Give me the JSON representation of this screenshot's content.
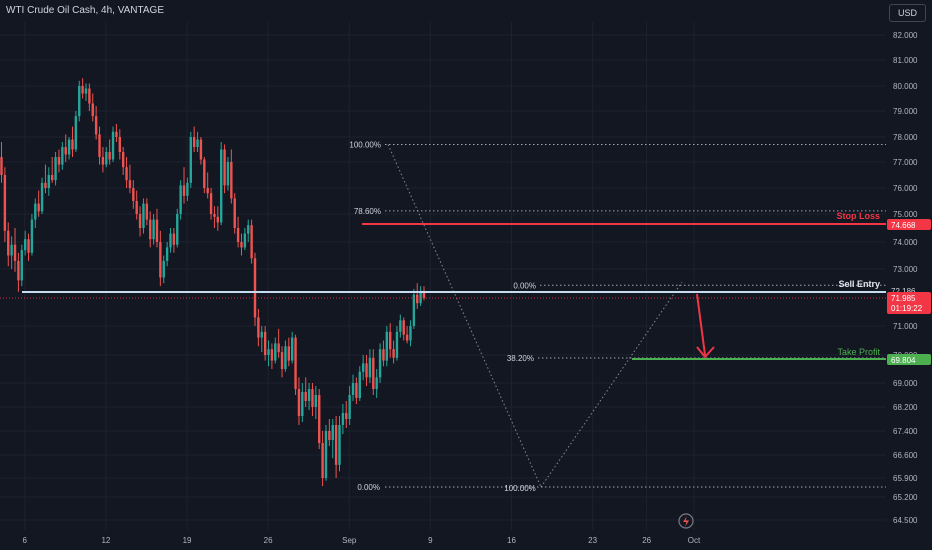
{
  "header": {
    "title": "WTI Crude Oil Cash, 4h, VANTAGE",
    "currency": "USD"
  },
  "colors": {
    "up": "#26a69a",
    "down": "#ef5350",
    "bg": "#131722",
    "grid": "#1e222d",
    "text": "#b2b5be",
    "red": "#f23645",
    "green": "#4caf50",
    "entry": "#c5dbf2"
  },
  "chart_data": {
    "type": "candlestick",
    "yticks": [
      82.0,
      81.0,
      80.0,
      79.0,
      78.0,
      77.0,
      76.0,
      75.0,
      74.0,
      73.0,
      71.0,
      70.0,
      69.0,
      68.2,
      67.4,
      66.6,
      65.9,
      65.2,
      64.5
    ],
    "ytick_labels": [
      "82.000",
      "81.000",
      "80.000",
      "79.000",
      "78.000",
      "77.000",
      "76.000",
      "75.000",
      "74.000",
      "73.000",
      "71.000",
      "70.000",
      "69.000",
      "68.200",
      "67.400",
      "66.600",
      "65.900",
      "65.200",
      "64.500"
    ],
    "xticks": [
      {
        "bar": 6,
        "label": "6"
      },
      {
        "bar": 30,
        "label": "12"
      },
      {
        "bar": 54,
        "label": "19"
      },
      {
        "bar": 78,
        "label": "26"
      },
      {
        "bar": 102,
        "label": "Sep"
      },
      {
        "bar": 126,
        "label": "9"
      },
      {
        "bar": 150,
        "label": "16"
      },
      {
        "bar": 174,
        "label": "23"
      },
      {
        "bar": 190,
        "label": "26"
      },
      {
        "bar": 204,
        "label": "Oct"
      }
    ],
    "price_line": {
      "value": 71.985,
      "label": "71.985",
      "countdown": "01:19:22"
    },
    "stop_loss": {
      "value": 74.668,
      "label": "74.668",
      "text": "Stop Loss"
    },
    "sell_entry": {
      "value": 72.186,
      "label": "72.186",
      "text": "Sell Entry"
    },
    "take_profit": {
      "value": 69.804,
      "label": "69.804",
      "text": "Take Profit"
    },
    "fib_top": {
      "levels": [
        {
          "label": "100.00%",
          "value": 77.7
        },
        {
          "label": "78.60%",
          "value": 75.12
        },
        {
          "label": "0.00%",
          "value": 72.5
        }
      ]
    },
    "fib_bottom": {
      "levels": [
        {
          "label": "38.20%",
          "value": 69.85
        },
        {
          "label": "0.00%",
          "value": 65.6
        },
        {
          "label": "100.00%",
          "value": 65.6
        }
      ]
    },
    "candles": [
      {
        "o": 77.2,
        "h": 77.8,
        "l": 76.2,
        "c": 76.5
      },
      {
        "o": 76.5,
        "h": 76.8,
        "l": 74.0,
        "c": 74.4
      },
      {
        "o": 74.4,
        "h": 74.7,
        "l": 73.1,
        "c": 73.5
      },
      {
        "o": 73.5,
        "h": 74.2,
        "l": 73.0,
        "c": 73.9
      },
      {
        "o": 73.9,
        "h": 74.5,
        "l": 72.9,
        "c": 73.3
      },
      {
        "o": 73.3,
        "h": 73.6,
        "l": 72.2,
        "c": 72.6
      },
      {
        "o": 72.6,
        "h": 73.9,
        "l": 72.4,
        "c": 73.7
      },
      {
        "o": 73.7,
        "h": 74.4,
        "l": 73.5,
        "c": 74.1
      },
      {
        "o": 74.1,
        "h": 74.3,
        "l": 73.3,
        "c": 73.6
      },
      {
        "o": 73.6,
        "h": 75.0,
        "l": 73.5,
        "c": 74.8
      },
      {
        "o": 74.8,
        "h": 75.6,
        "l": 74.5,
        "c": 75.4
      },
      {
        "o": 75.4,
        "h": 75.9,
        "l": 74.9,
        "c": 75.1
      },
      {
        "o": 75.1,
        "h": 76.4,
        "l": 75.0,
        "c": 76.2
      },
      {
        "o": 76.2,
        "h": 76.9,
        "l": 75.8,
        "c": 76.0
      },
      {
        "o": 76.0,
        "h": 76.8,
        "l": 75.7,
        "c": 76.5
      },
      {
        "o": 76.5,
        "h": 77.2,
        "l": 76.2,
        "c": 76.3
      },
      {
        "o": 76.3,
        "h": 77.4,
        "l": 76.1,
        "c": 77.2
      },
      {
        "o": 77.2,
        "h": 77.5,
        "l": 76.6,
        "c": 76.9
      },
      {
        "o": 76.9,
        "h": 77.8,
        "l": 76.7,
        "c": 77.6
      },
      {
        "o": 77.6,
        "h": 78.1,
        "l": 77.0,
        "c": 77.3
      },
      {
        "o": 77.3,
        "h": 78.0,
        "l": 77.1,
        "c": 77.9
      },
      {
        "o": 77.9,
        "h": 78.4,
        "l": 77.2,
        "c": 77.5
      },
      {
        "o": 77.5,
        "h": 79.0,
        "l": 77.4,
        "c": 78.8
      },
      {
        "o": 78.8,
        "h": 80.2,
        "l": 78.6,
        "c": 80.0
      },
      {
        "o": 80.0,
        "h": 80.3,
        "l": 79.5,
        "c": 79.7
      },
      {
        "o": 79.7,
        "h": 80.1,
        "l": 79.4,
        "c": 79.9
      },
      {
        "o": 79.9,
        "h": 80.1,
        "l": 79.0,
        "c": 79.3
      },
      {
        "o": 79.3,
        "h": 79.7,
        "l": 78.6,
        "c": 78.8
      },
      {
        "o": 78.8,
        "h": 79.2,
        "l": 77.9,
        "c": 78.1
      },
      {
        "o": 78.1,
        "h": 78.4,
        "l": 76.9,
        "c": 77.2
      },
      {
        "o": 77.2,
        "h": 77.6,
        "l": 76.6,
        "c": 76.9
      },
      {
        "o": 76.9,
        "h": 77.6,
        "l": 76.8,
        "c": 77.4
      },
      {
        "o": 77.4,
        "h": 77.9,
        "l": 76.9,
        "c": 77.1
      },
      {
        "o": 77.1,
        "h": 78.4,
        "l": 77.0,
        "c": 78.2
      },
      {
        "o": 78.2,
        "h": 78.5,
        "l": 77.8,
        "c": 78.0
      },
      {
        "o": 78.0,
        "h": 78.3,
        "l": 77.1,
        "c": 77.4
      },
      {
        "o": 77.4,
        "h": 77.6,
        "l": 76.5,
        "c": 76.8
      },
      {
        "o": 76.8,
        "h": 77.2,
        "l": 76.0,
        "c": 76.3
      },
      {
        "o": 76.3,
        "h": 76.9,
        "l": 75.8,
        "c": 76.0
      },
      {
        "o": 76.0,
        "h": 76.3,
        "l": 75.2,
        "c": 75.5
      },
      {
        "o": 75.5,
        "h": 75.9,
        "l": 74.8,
        "c": 75.0
      },
      {
        "o": 75.0,
        "h": 75.3,
        "l": 74.2,
        "c": 74.5
      },
      {
        "o": 74.5,
        "h": 75.6,
        "l": 74.3,
        "c": 75.4
      },
      {
        "o": 75.4,
        "h": 75.6,
        "l": 74.6,
        "c": 74.8
      },
      {
        "o": 74.8,
        "h": 75.1,
        "l": 73.8,
        "c": 74.1
      },
      {
        "o": 74.1,
        "h": 75.0,
        "l": 73.9,
        "c": 74.8
      },
      {
        "o": 74.8,
        "h": 75.2,
        "l": 73.8,
        "c": 74.0
      },
      {
        "o": 74.0,
        "h": 74.4,
        "l": 72.4,
        "c": 72.7
      },
      {
        "o": 72.7,
        "h": 73.5,
        "l": 72.5,
        "c": 73.3
      },
      {
        "o": 73.3,
        "h": 74.0,
        "l": 73.1,
        "c": 73.8
      },
      {
        "o": 73.8,
        "h": 74.5,
        "l": 73.6,
        "c": 74.3
      },
      {
        "o": 74.3,
        "h": 74.5,
        "l": 73.6,
        "c": 73.9
      },
      {
        "o": 73.9,
        "h": 75.2,
        "l": 73.8,
        "c": 75.0
      },
      {
        "o": 75.0,
        "h": 76.3,
        "l": 74.8,
        "c": 76.1
      },
      {
        "o": 76.1,
        "h": 76.8,
        "l": 75.4,
        "c": 75.7
      },
      {
        "o": 75.7,
        "h": 76.4,
        "l": 75.5,
        "c": 76.2
      },
      {
        "o": 76.2,
        "h": 78.2,
        "l": 76.0,
        "c": 78.0
      },
      {
        "o": 78.0,
        "h": 78.4,
        "l": 77.4,
        "c": 77.6
      },
      {
        "o": 77.6,
        "h": 78.2,
        "l": 77.4,
        "c": 77.9
      },
      {
        "o": 77.9,
        "h": 78.0,
        "l": 76.9,
        "c": 77.1
      },
      {
        "o": 77.1,
        "h": 77.2,
        "l": 75.8,
        "c": 76.0
      },
      {
        "o": 76.0,
        "h": 76.6,
        "l": 75.6,
        "c": 75.8
      },
      {
        "o": 75.8,
        "h": 76.0,
        "l": 74.8,
        "c": 75.0
      },
      {
        "o": 75.0,
        "h": 75.3,
        "l": 74.5,
        "c": 74.9
      },
      {
        "o": 74.9,
        "h": 75.3,
        "l": 74.4,
        "c": 74.7
      },
      {
        "o": 74.7,
        "h": 77.8,
        "l": 74.6,
        "c": 77.5
      },
      {
        "o": 77.5,
        "h": 77.7,
        "l": 75.8,
        "c": 76.1
      },
      {
        "o": 76.1,
        "h": 77.2,
        "l": 75.9,
        "c": 77.0
      },
      {
        "o": 77.0,
        "h": 77.5,
        "l": 75.4,
        "c": 75.6
      },
      {
        "o": 75.6,
        "h": 75.8,
        "l": 74.3,
        "c": 74.5
      },
      {
        "o": 74.5,
        "h": 74.9,
        "l": 73.8,
        "c": 74.0
      },
      {
        "o": 74.0,
        "h": 74.3,
        "l": 73.5,
        "c": 73.8
      },
      {
        "o": 73.8,
        "h": 74.5,
        "l": 73.7,
        "c": 74.3
      },
      {
        "o": 74.3,
        "h": 74.8,
        "l": 74.0,
        "c": 74.6
      },
      {
        "o": 74.6,
        "h": 74.8,
        "l": 73.2,
        "c": 73.4
      },
      {
        "o": 73.4,
        "h": 73.6,
        "l": 71.0,
        "c": 71.3
      },
      {
        "o": 71.3,
        "h": 71.6,
        "l": 70.3,
        "c": 70.6
      },
      {
        "o": 70.6,
        "h": 71.0,
        "l": 70.1,
        "c": 70.8
      },
      {
        "o": 70.8,
        "h": 71.0,
        "l": 69.8,
        "c": 70.0
      },
      {
        "o": 70.0,
        "h": 70.5,
        "l": 69.6,
        "c": 70.2
      },
      {
        "o": 70.2,
        "h": 70.4,
        "l": 69.5,
        "c": 69.8
      },
      {
        "o": 69.8,
        "h": 70.6,
        "l": 69.7,
        "c": 70.4
      },
      {
        "o": 70.4,
        "h": 70.9,
        "l": 69.9,
        "c": 70.1
      },
      {
        "o": 70.1,
        "h": 70.3,
        "l": 69.2,
        "c": 69.5
      },
      {
        "o": 69.5,
        "h": 70.5,
        "l": 69.4,
        "c": 70.3
      },
      {
        "o": 70.3,
        "h": 70.6,
        "l": 69.6,
        "c": 69.8
      },
      {
        "o": 69.8,
        "h": 70.8,
        "l": 69.7,
        "c": 70.6
      },
      {
        "o": 70.6,
        "h": 70.7,
        "l": 68.6,
        "c": 68.8
      },
      {
        "o": 68.8,
        "h": 69.2,
        "l": 67.6,
        "c": 67.9
      },
      {
        "o": 67.9,
        "h": 69.0,
        "l": 67.7,
        "c": 68.7
      },
      {
        "o": 68.7,
        "h": 69.2,
        "l": 68.2,
        "c": 68.4
      },
      {
        "o": 68.4,
        "h": 69.0,
        "l": 68.1,
        "c": 68.8
      },
      {
        "o": 68.8,
        "h": 69.0,
        "l": 67.9,
        "c": 68.2
      },
      {
        "o": 68.2,
        "h": 68.9,
        "l": 67.8,
        "c": 68.6
      },
      {
        "o": 68.6,
        "h": 68.8,
        "l": 66.8,
        "c": 67.0
      },
      {
        "o": 67.0,
        "h": 67.4,
        "l": 65.6,
        "c": 65.9
      },
      {
        "o": 65.9,
        "h": 67.6,
        "l": 65.8,
        "c": 67.4
      },
      {
        "o": 67.4,
        "h": 67.8,
        "l": 66.9,
        "c": 67.1
      },
      {
        "o": 67.1,
        "h": 67.8,
        "l": 66.5,
        "c": 67.6
      },
      {
        "o": 67.6,
        "h": 67.9,
        "l": 65.9,
        "c": 66.3
      },
      {
        "o": 66.3,
        "h": 67.9,
        "l": 66.1,
        "c": 67.6
      },
      {
        "o": 67.6,
        "h": 68.3,
        "l": 67.3,
        "c": 68.0
      },
      {
        "o": 68.0,
        "h": 68.4,
        "l": 67.5,
        "c": 67.8
      },
      {
        "o": 67.8,
        "h": 68.9,
        "l": 67.6,
        "c": 68.6
      },
      {
        "o": 68.6,
        "h": 69.3,
        "l": 68.4,
        "c": 69.0
      },
      {
        "o": 69.0,
        "h": 69.2,
        "l": 68.3,
        "c": 68.5
      },
      {
        "o": 68.5,
        "h": 69.6,
        "l": 68.4,
        "c": 69.4
      },
      {
        "o": 69.4,
        "h": 70.0,
        "l": 69.1,
        "c": 69.7
      },
      {
        "o": 69.7,
        "h": 70.0,
        "l": 68.9,
        "c": 69.2
      },
      {
        "o": 69.2,
        "h": 70.2,
        "l": 69.0,
        "c": 69.9
      },
      {
        "o": 69.9,
        "h": 70.2,
        "l": 68.6,
        "c": 68.8
      },
      {
        "o": 68.8,
        "h": 69.5,
        "l": 68.5,
        "c": 69.2
      },
      {
        "o": 69.2,
        "h": 70.4,
        "l": 69.0,
        "c": 70.2
      },
      {
        "o": 70.2,
        "h": 70.5,
        "l": 69.6,
        "c": 69.8
      },
      {
        "o": 69.8,
        "h": 71.0,
        "l": 69.6,
        "c": 70.8
      },
      {
        "o": 70.8,
        "h": 71.1,
        "l": 69.9,
        "c": 70.2
      },
      {
        "o": 70.2,
        "h": 70.5,
        "l": 69.7,
        "c": 69.9
      },
      {
        "o": 69.9,
        "h": 71.0,
        "l": 69.8,
        "c": 70.8
      },
      {
        "o": 70.8,
        "h": 71.4,
        "l": 70.6,
        "c": 71.2
      },
      {
        "o": 71.2,
        "h": 71.3,
        "l": 70.5,
        "c": 70.7
      },
      {
        "o": 70.7,
        "h": 71.0,
        "l": 70.4,
        "c": 70.5
      },
      {
        "o": 70.5,
        "h": 71.2,
        "l": 70.3,
        "c": 71.0
      },
      {
        "o": 71.0,
        "h": 72.3,
        "l": 70.9,
        "c": 72.1
      },
      {
        "o": 72.1,
        "h": 72.5,
        "l": 71.6,
        "c": 71.8
      },
      {
        "o": 71.8,
        "h": 72.4,
        "l": 71.7,
        "c": 72.2
      },
      {
        "o": 72.2,
        "h": 72.4,
        "l": 71.9,
        "c": 71.985
      }
    ]
  }
}
